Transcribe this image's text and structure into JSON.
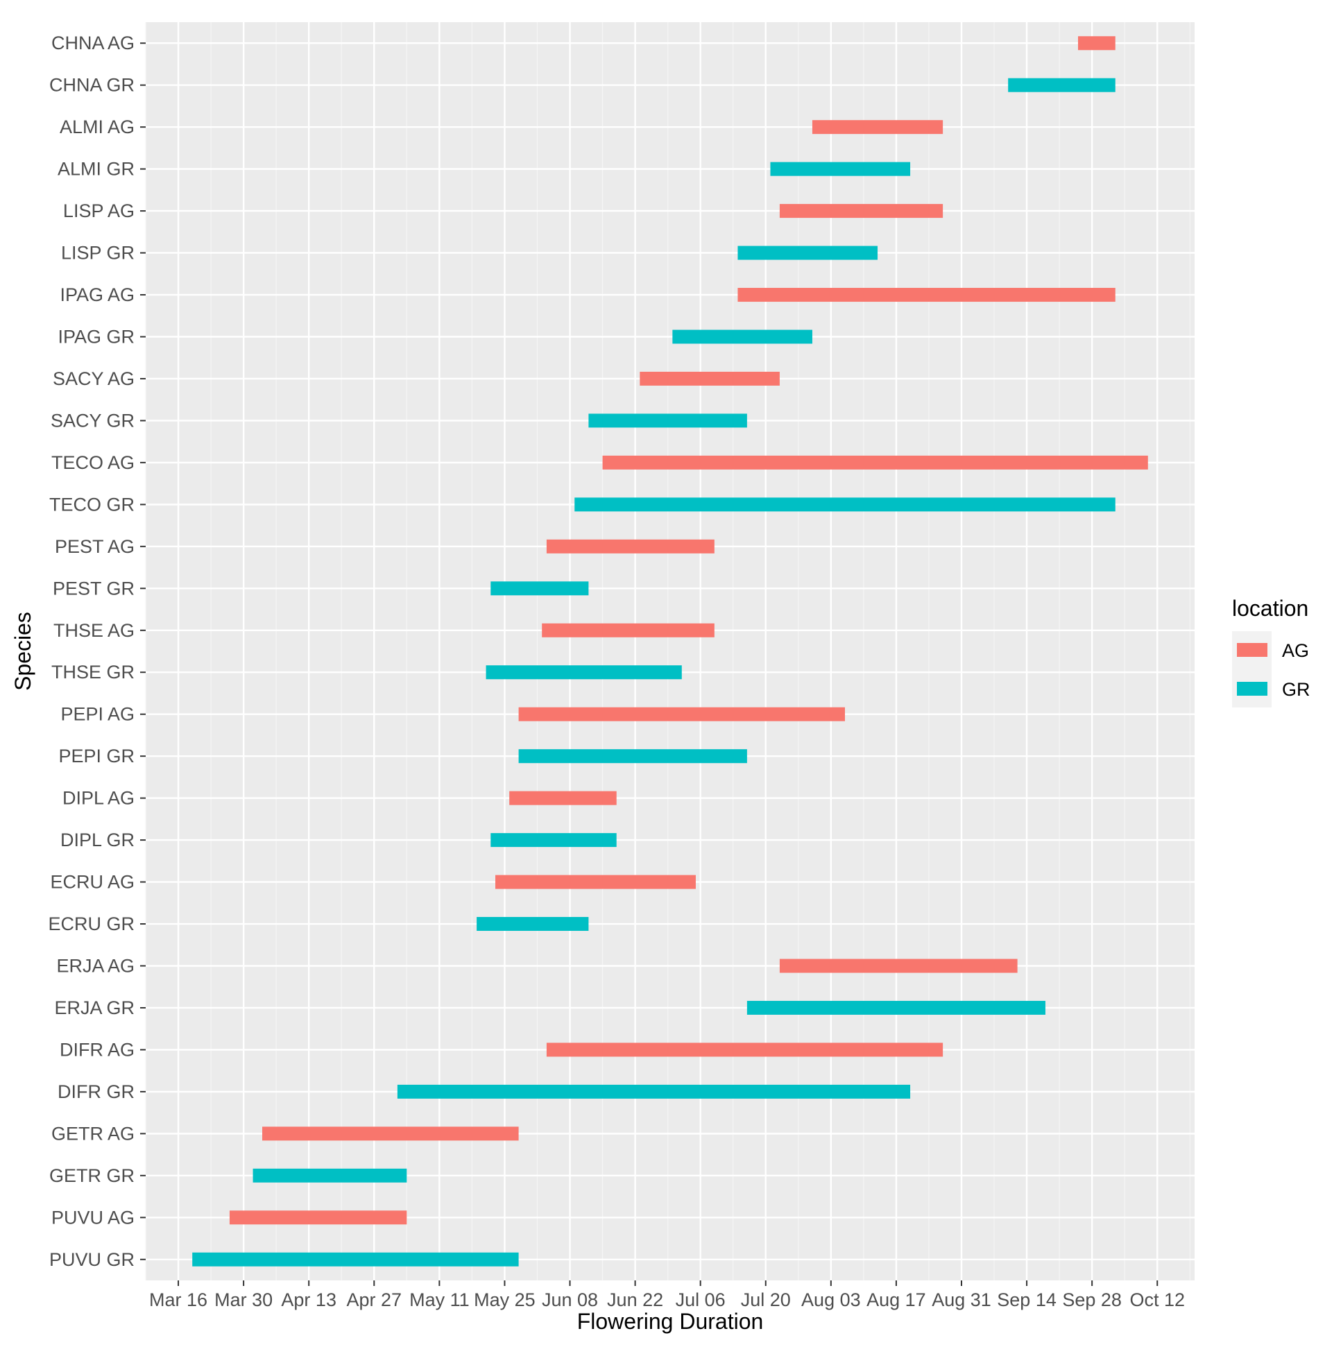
{
  "chart_data": {
    "type": "bar",
    "orientation": "horizontal-range",
    "title": "",
    "xlabel": "Flowering Duration",
    "ylabel": "Species",
    "x_ticks": [
      "Mar 16",
      "Mar 30",
      "Apr 13",
      "Apr 27",
      "May 11",
      "May 25",
      "Jun 08",
      "Jun 22",
      "Jul 06",
      "Jul 20",
      "Aug 03",
      "Aug 17",
      "Aug 31",
      "Sep 14",
      "Sep 28",
      "Oct 12"
    ],
    "x_units": "days since Mar 16",
    "xlim": [
      -7,
      218
    ],
    "grid": true,
    "legend": {
      "title": "location",
      "placement": "right",
      "entries": [
        {
          "label": "AG",
          "color": "#F8766D"
        },
        {
          "label": "GR",
          "color": "#00BFC4"
        }
      ]
    },
    "categories": [
      "CHNA AG",
      "CHNA GR",
      "ALMI AG",
      "ALMI GR",
      "LISP AG",
      "LISP GR",
      "IPAG AG",
      "IPAG GR",
      "SACY AG",
      "SACY GR",
      "TECO AG",
      "TECO GR",
      "PEST AG",
      "PEST GR",
      "THSE AG",
      "THSE GR",
      "PEPI AG",
      "PEPI GR",
      "DIPL AG",
      "DIPL GR",
      "ECRU AG",
      "ECRU GR",
      "ERJA AG",
      "ERJA GR",
      "DIFR AG",
      "DIFR GR",
      "GETR AG",
      "GETR GR",
      "PUVU AG",
      "PUVU GR"
    ],
    "bars": [
      {
        "species": "CHNA AG",
        "location": "AG",
        "start": 193,
        "end": 201
      },
      {
        "species": "CHNA GR",
        "location": "GR",
        "start": 178,
        "end": 201
      },
      {
        "species": "ALMI AG",
        "location": "AG",
        "start": 136,
        "end": 164
      },
      {
        "species": "ALMI GR",
        "location": "GR",
        "start": 127,
        "end": 157
      },
      {
        "species": "LISP AG",
        "location": "AG",
        "start": 129,
        "end": 164
      },
      {
        "species": "LISP GR",
        "location": "GR",
        "start": 120,
        "end": 150
      },
      {
        "species": "IPAG AG",
        "location": "AG",
        "start": 120,
        "end": 201
      },
      {
        "species": "IPAG GR",
        "location": "GR",
        "start": 106,
        "end": 136
      },
      {
        "species": "SACY AG",
        "location": "AG",
        "start": 99,
        "end": 129
      },
      {
        "species": "SACY GR",
        "location": "GR",
        "start": 88,
        "end": 122
      },
      {
        "species": "TECO AG",
        "location": "AG",
        "start": 91,
        "end": 208
      },
      {
        "species": "TECO GR",
        "location": "GR",
        "start": 85,
        "end": 201
      },
      {
        "species": "PEST AG",
        "location": "AG",
        "start": 79,
        "end": 115
      },
      {
        "species": "PEST GR",
        "location": "GR",
        "start": 67,
        "end": 88
      },
      {
        "species": "THSE AG",
        "location": "AG",
        "start": 78,
        "end": 115
      },
      {
        "species": "THSE GR",
        "location": "GR",
        "start": 66,
        "end": 108
      },
      {
        "species": "PEPI AG",
        "location": "AG",
        "start": 73,
        "end": 143
      },
      {
        "species": "PEPI GR",
        "location": "GR",
        "start": 73,
        "end": 122
      },
      {
        "species": "DIPL AG",
        "location": "AG",
        "start": 71,
        "end": 94
      },
      {
        "species": "DIPL GR",
        "location": "GR",
        "start": 67,
        "end": 94
      },
      {
        "species": "ECRU AG",
        "location": "AG",
        "start": 68,
        "end": 111
      },
      {
        "species": "ECRU GR",
        "location": "GR",
        "start": 64,
        "end": 88
      },
      {
        "species": "ERJA AG",
        "location": "AG",
        "start": 129,
        "end": 180
      },
      {
        "species": "ERJA GR",
        "location": "GR",
        "start": 122,
        "end": 186
      },
      {
        "species": "DIFR AG",
        "location": "AG",
        "start": 79,
        "end": 164
      },
      {
        "species": "DIFR GR",
        "location": "GR",
        "start": 47,
        "end": 157
      },
      {
        "species": "GETR AG",
        "location": "AG",
        "start": 18,
        "end": 73
      },
      {
        "species": "GETR GR",
        "location": "GR",
        "start": 16,
        "end": 49
      },
      {
        "species": "PUVU AG",
        "location": "AG",
        "start": 11,
        "end": 49
      },
      {
        "species": "PUVU GR",
        "location": "GR",
        "start": 3,
        "end": 73
      }
    ]
  }
}
